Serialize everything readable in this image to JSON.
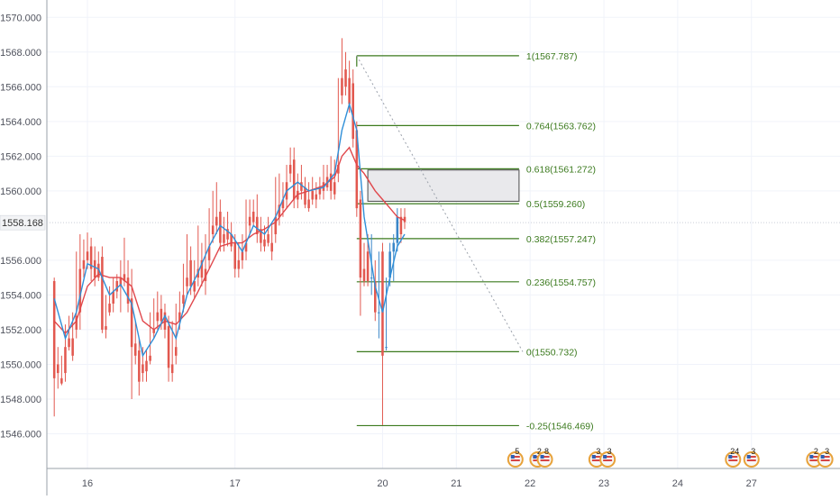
{
  "chart_data": {
    "type": "candlestick",
    "y_axis": {
      "position": "left",
      "ylim": [
        1544.0,
        1571.0
      ],
      "tick_labels": [
        "1570.000",
        "1568.000",
        "1566.000",
        "1564.000",
        "1562.000",
        "1560.000",
        "1556.000",
        "1554.000",
        "1552.000",
        "1550.000",
        "1548.000",
        "1546.000"
      ],
      "tick_values": [
        1570,
        1568,
        1566,
        1564,
        1562,
        1560,
        1556,
        1554,
        1552,
        1550,
        1548,
        1546
      ],
      "current_price_label": "1558.168",
      "current_price": 1558.168
    },
    "x_axis": {
      "tick_labels": [
        "16",
        "17",
        "20",
        "21",
        "22",
        "23",
        "24",
        "27"
      ],
      "tick_positions": [
        1.0,
        3.0,
        5.0,
        6.0,
        7.0,
        8.0,
        9.0,
        10.0
      ],
      "xlim": [
        0.45,
        11.2
      ]
    },
    "grid": true,
    "up_color": "#3a86c8",
    "down_color": "#e2584f",
    "candles": [
      [
        0.55,
        1554.8,
        1555.0,
        1549.2,
        1547.0
      ],
      [
        0.6,
        1550.0,
        1551.0,
        1549.5,
        1548.6
      ],
      [
        0.65,
        1549.2,
        1550.5,
        1548.9,
        1548.8
      ],
      [
        0.7,
        1551.0,
        1552.3,
        1549.5,
        1549.0
      ],
      [
        0.75,
        1551.5,
        1552.8,
        1551.0,
        1550.8
      ],
      [
        0.8,
        1551.5,
        1553.0,
        1550.5,
        1550.2
      ],
      [
        0.85,
        1552.8,
        1556.5,
        1552.0,
        1551.5
      ],
      [
        0.9,
        1555.5,
        1557.5,
        1553.0,
        1552.0
      ],
      [
        0.95,
        1556.0,
        1557.2,
        1555.5,
        1555.0
      ],
      [
        1.0,
        1556.5,
        1557.6,
        1556.0,
        1555.5
      ],
      [
        1.05,
        1556.8,
        1557.3,
        1555.5,
        1554.8
      ],
      [
        1.1,
        1556.0,
        1556.8,
        1555.0,
        1554.5
      ],
      [
        1.15,
        1555.8,
        1556.5,
        1555.0,
        1554.8
      ],
      [
        1.2,
        1556.2,
        1556.8,
        1552.0,
        1551.8
      ],
      [
        1.25,
        1552.2,
        1554.0,
        1552.0,
        1551.5
      ],
      [
        1.3,
        1553.5,
        1554.5,
        1553.0,
        1552.8
      ],
      [
        1.35,
        1554.2,
        1555.0,
        1553.5,
        1553.0
      ],
      [
        1.4,
        1554.8,
        1555.2,
        1554.2,
        1553.8
      ],
      [
        1.45,
        1555.0,
        1556.0,
        1554.5,
        1553.0
      ],
      [
        1.5,
        1555.2,
        1557.3,
        1554.8,
        1554.5
      ],
      [
        1.55,
        1555.0,
        1556.0,
        1553.5,
        1553.0
      ],
      [
        1.6,
        1553.8,
        1555.5,
        1551.0,
        1548.0
      ],
      [
        1.65,
        1551.2,
        1552.5,
        1550.5,
        1550.0
      ],
      [
        1.7,
        1550.8,
        1551.5,
        1549.0,
        1548.2
      ],
      [
        1.75,
        1550.0,
        1551.0,
        1549.5,
        1549.0
      ],
      [
        1.8,
        1550.2,
        1550.8,
        1549.6,
        1549.0
      ],
      [
        1.85,
        1550.5,
        1553.0,
        1550.2,
        1550.0
      ],
      [
        1.9,
        1552.0,
        1553.8,
        1551.8,
        1551.5
      ],
      [
        1.95,
        1553.0,
        1554.2,
        1552.5,
        1552.0
      ],
      [
        2.0,
        1553.2,
        1554.0,
        1552.5,
        1552.0
      ],
      [
        2.05,
        1553.0,
        1553.5,
        1552.0,
        1551.5
      ],
      [
        2.1,
        1552.2,
        1552.8,
        1549.8,
        1549.0
      ],
      [
        2.15,
        1550.0,
        1552.5,
        1549.5,
        1549.0
      ],
      [
        2.2,
        1551.0,
        1553.5,
        1550.5,
        1550.0
      ],
      [
        2.25,
        1553.0,
        1554.2,
        1552.5,
        1552.0
      ],
      [
        2.3,
        1554.0,
        1555.8,
        1553.5,
        1553.0
      ],
      [
        2.35,
        1555.0,
        1557.5,
        1554.5,
        1554.0
      ],
      [
        2.4,
        1556.0,
        1556.8,
        1554.5,
        1554.0
      ],
      [
        2.45,
        1554.8,
        1556.0,
        1554.2,
        1553.8
      ],
      [
        2.5,
        1555.5,
        1558.0,
        1555.0,
        1554.5
      ],
      [
        2.55,
        1556.0,
        1557.0,
        1555.0,
        1554.5
      ],
      [
        2.6,
        1555.5,
        1557.5,
        1554.8,
        1554.0
      ],
      [
        2.65,
        1556.8,
        1559.0,
        1556.0,
        1555.5
      ],
      [
        2.7,
        1558.0,
        1560.0,
        1557.5,
        1557.0
      ],
      [
        2.75,
        1558.5,
        1560.5,
        1558.0,
        1557.5
      ],
      [
        2.8,
        1558.8,
        1559.5,
        1557.0,
        1556.5
      ],
      [
        2.85,
        1557.5,
        1558.5,
        1557.0,
        1556.5
      ],
      [
        2.9,
        1557.8,
        1558.8,
        1557.2,
        1556.8
      ],
      [
        2.95,
        1557.5,
        1558.2,
        1556.8,
        1556.5
      ],
      [
        3.0,
        1557.0,
        1557.5,
        1555.5,
        1555.0
      ],
      [
        3.05,
        1556.0,
        1557.0,
        1555.5,
        1555.0
      ],
      [
        3.1,
        1556.5,
        1557.5,
        1556.0,
        1555.5
      ],
      [
        3.15,
        1557.0,
        1559.5,
        1556.5,
        1556.0
      ],
      [
        3.2,
        1558.5,
        1559.5,
        1558.0,
        1557.5
      ],
      [
        3.25,
        1558.8,
        1559.5,
        1558.2,
        1558.0
      ],
      [
        3.3,
        1558.5,
        1559.8,
        1557.5,
        1557.0
      ],
      [
        3.35,
        1557.8,
        1558.5,
        1557.0,
        1556.5
      ],
      [
        3.4,
        1557.2,
        1558.0,
        1556.8,
        1556.5
      ],
      [
        3.45,
        1557.5,
        1558.5,
        1557.0,
        1556.8
      ],
      [
        3.5,
        1557.0,
        1558.0,
        1556.5,
        1556.0
      ],
      [
        3.55,
        1558.5,
        1560.8,
        1557.5,
        1557.0
      ],
      [
        3.6,
        1559.2,
        1561.0,
        1558.5,
        1558.0
      ],
      [
        3.65,
        1559.5,
        1560.5,
        1559.0,
        1558.5
      ],
      [
        3.7,
        1560.5,
        1561.5,
        1559.5,
        1559.0
      ],
      [
        3.75,
        1561.5,
        1562.5,
        1561.0,
        1560.5
      ],
      [
        3.8,
        1561.8,
        1562.5,
        1559.5,
        1559.0
      ],
      [
        3.85,
        1560.0,
        1561.0,
        1559.5,
        1559.0
      ],
      [
        3.9,
        1560.5,
        1561.5,
        1560.0,
        1559.5
      ],
      [
        3.95,
        1560.2,
        1560.8,
        1559.2,
        1559.0
      ],
      [
        4.0,
        1559.5,
        1560.5,
        1559.0,
        1558.8
      ],
      [
        4.05,
        1560.0,
        1560.8,
        1559.5,
        1559.2
      ],
      [
        4.1,
        1559.8,
        1560.5,
        1559.5,
        1559.0
      ],
      [
        4.15,
        1560.2,
        1560.8,
        1559.8,
        1559.5
      ],
      [
        4.2,
        1560.5,
        1561.5,
        1560.0,
        1559.5
      ],
      [
        4.25,
        1560.8,
        1561.5,
        1560.2,
        1560.0
      ],
      [
        4.3,
        1561.0,
        1562.0,
        1560.0,
        1559.5
      ],
      [
        4.35,
        1560.5,
        1561.8,
        1559.8,
        1559.5
      ],
      [
        4.4,
        1561.5,
        1566.5,
        1561.0,
        1560.5
      ],
      [
        4.45,
        1566.5,
        1568.8,
        1565.5,
        1565.0
      ],
      [
        4.5,
        1567.0,
        1568.0,
        1566.0,
        1565.5
      ],
      [
        4.55,
        1566.5,
        1567.5,
        1565.0,
        1564.5
      ],
      [
        4.6,
        1566.2,
        1567.0,
        1563.0,
        1562.5
      ],
      [
        4.65,
        1563.5,
        1564.0,
        1559.0,
        1558.5
      ],
      [
        4.7,
        1559.5,
        1560.0,
        1555.0,
        1552.8
      ],
      [
        4.75,
        1555.5,
        1557.0,
        1554.8,
        1554.5
      ],
      [
        4.8,
        1556.5,
        1557.5,
        1554.8,
        1554.5
      ],
      [
        4.85,
        1555.0,
        1557.5,
        1555.0,
        1554.0
      ],
      [
        4.9,
        1554.8,
        1556.0,
        1553.0,
        1552.5
      ],
      [
        4.95,
        1553.0,
        1556.5,
        1553.0,
        1551.5
      ],
      [
        5.0,
        1556.5,
        1557.0,
        1550.5,
        1546.5
      ],
      [
        5.05,
        1551.0,
        1555.0,
        1551.0,
        1550.8
      ],
      [
        5.1,
        1555.0,
        1557.0,
        1556.5,
        1554.5
      ],
      [
        5.15,
        1556.5,
        1557.5,
        1557.0,
        1554.8
      ],
      [
        5.2,
        1557.0,
        1559.0,
        1558.5,
        1556.5
      ],
      [
        5.25,
        1558.5,
        1559.0,
        1557.5,
        1557.0
      ],
      [
        5.3,
        1558.5,
        1559.0,
        1558.2,
        1557.8
      ]
    ],
    "ema_fast_color": "#2f8fd8",
    "ema_fast": [
      [
        0.55,
        1553.8
      ],
      [
        0.7,
        1551.5
      ],
      [
        0.85,
        1553.0
      ],
      [
        1.0,
        1555.8
      ],
      [
        1.15,
        1555.5
      ],
      [
        1.3,
        1554.0
      ],
      [
        1.45,
        1554.6
      ],
      [
        1.6,
        1553.5
      ],
      [
        1.75,
        1550.5
      ],
      [
        1.9,
        1551.5
      ],
      [
        2.05,
        1552.8
      ],
      [
        2.2,
        1551.5
      ],
      [
        2.35,
        1554.0
      ],
      [
        2.5,
        1555.3
      ],
      [
        2.65,
        1556.8
      ],
      [
        2.8,
        1558.0
      ],
      [
        2.95,
        1557.5
      ],
      [
        3.1,
        1556.5
      ],
      [
        3.25,
        1558.0
      ],
      [
        3.4,
        1557.5
      ],
      [
        3.55,
        1558.5
      ],
      [
        3.7,
        1560.0
      ],
      [
        3.85,
        1560.5
      ],
      [
        4.0,
        1560.0
      ],
      [
        4.2,
        1560.2
      ],
      [
        4.35,
        1561.0
      ],
      [
        4.45,
        1563.5
      ],
      [
        4.55,
        1565.0
      ],
      [
        4.65,
        1563.5
      ],
      [
        4.75,
        1558.5
      ],
      [
        4.9,
        1554.5
      ],
      [
        5.0,
        1553.0
      ],
      [
        5.1,
        1555.0
      ],
      [
        5.2,
        1556.8
      ],
      [
        5.3,
        1557.5
      ]
    ],
    "ema_slow_color": "#e0474c",
    "ema_slow": [
      [
        0.55,
        1552.5
      ],
      [
        0.7,
        1551.8
      ],
      [
        0.85,
        1552.5
      ],
      [
        1.0,
        1554.5
      ],
      [
        1.15,
        1555.2
      ],
      [
        1.3,
        1555.0
      ],
      [
        1.45,
        1555.0
      ],
      [
        1.6,
        1554.5
      ],
      [
        1.75,
        1552.5
      ],
      [
        1.9,
        1552.0
      ],
      [
        2.05,
        1552.5
      ],
      [
        2.2,
        1552.3
      ],
      [
        2.35,
        1553.0
      ],
      [
        2.5,
        1554.2
      ],
      [
        2.65,
        1555.5
      ],
      [
        2.8,
        1556.8
      ],
      [
        2.95,
        1557.0
      ],
      [
        3.1,
        1557.0
      ],
      [
        3.25,
        1557.5
      ],
      [
        3.4,
        1557.8
      ],
      [
        3.55,
        1558.2
      ],
      [
        3.7,
        1559.0
      ],
      [
        3.85,
        1559.8
      ],
      [
        4.0,
        1560.0
      ],
      [
        4.2,
        1560.3
      ],
      [
        4.35,
        1560.8
      ],
      [
        4.45,
        1562.0
      ],
      [
        4.55,
        1562.5
      ],
      [
        4.65,
        1561.5
      ],
      [
        4.75,
        1561.0
      ],
      [
        4.9,
        1560.0
      ],
      [
        5.0,
        1559.5
      ],
      [
        5.1,
        1559.0
      ],
      [
        5.2,
        1558.5
      ],
      [
        5.3,
        1558.3
      ]
    ],
    "fibonacci": {
      "line_color": "#3b7a1e",
      "x_start": 4.65,
      "x_end": 6.85,
      "levels": [
        {
          "ratio": "1",
          "price": 1567.787,
          "label": "1(1567.787)"
        },
        {
          "ratio": "0.764",
          "price": 1563.762,
          "label": "0.764(1563.762)"
        },
        {
          "ratio": "0.618",
          "price": 1561.272,
          "label": "0.618(1561.272)"
        },
        {
          "ratio": "0.5",
          "price": 1559.26,
          "label": "0.5(1559.260)"
        },
        {
          "ratio": "0.382",
          "price": 1557.247,
          "label": "0.382(1557.247)"
        },
        {
          "ratio": "0.236",
          "price": 1554.757,
          "label": "0.236(1554.757)"
        },
        {
          "ratio": "0",
          "price": 1550.732,
          "label": "0(1550.732)"
        },
        {
          "ratio": "-0.25",
          "price": 1546.469,
          "label": "-0.25(1546.469)"
        }
      ],
      "trend_line": {
        "from": [
          4.65,
          1567.787
        ],
        "to": [
          6.9,
          1550.732
        ]
      }
    },
    "zone": {
      "x_start": 4.8,
      "x_end": 6.85,
      "price_top": 1561.2,
      "price_bottom": 1559.4
    },
    "events": [
      {
        "x": 6.8,
        "label": "5"
      },
      {
        "x": 7.1,
        "label": "2"
      },
      {
        "x": 7.2,
        "label": "8"
      },
      {
        "x": 7.9,
        "label": "3"
      },
      {
        "x": 8.05,
        "label": "3"
      },
      {
        "x": 9.75,
        "label": "24"
      },
      {
        "x": 10.0,
        "label": "3"
      },
      {
        "x": 10.85,
        "label": "2"
      },
      {
        "x": 11.0,
        "label": "3"
      }
    ]
  }
}
